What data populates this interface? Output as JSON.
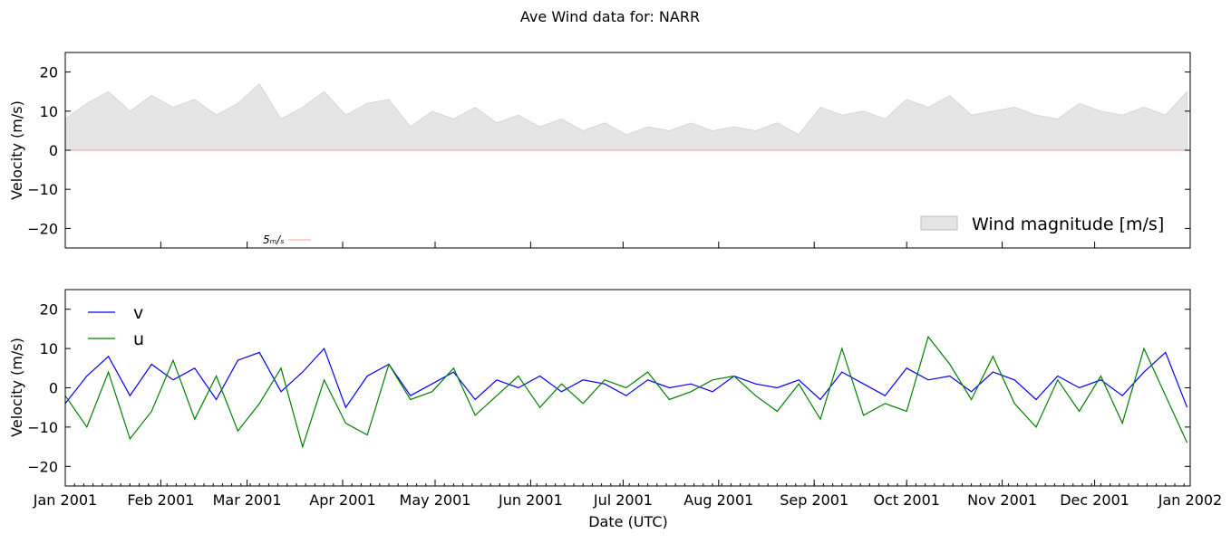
{
  "title": "Ave Wind data for:   NARR",
  "chart_data": [
    {
      "type": "area",
      "panel": "top",
      "ylabel": "Velocity (m/s)",
      "ylim": [
        -25,
        25
      ],
      "yticks": [
        20,
        10,
        0,
        -10,
        -20
      ],
      "xlim": [
        "2001-01-01",
        "2002-01-01"
      ],
      "legend": {
        "placement": "lower-right",
        "entries": [
          "Wind magnitude [m/s]"
        ]
      },
      "quiver_key": "5ₘ/ₛ",
      "series": [
        {
          "name": "Wind magnitude [m/s]",
          "color": "#e5e5e5",
          "x": [
            "2001-01-01",
            "2001-01-08",
            "2001-01-15",
            "2001-01-22",
            "2001-01-29",
            "2001-02-05",
            "2001-02-12",
            "2001-02-19",
            "2001-02-26",
            "2001-03-05",
            "2001-03-12",
            "2001-03-19",
            "2001-03-26",
            "2001-04-02",
            "2001-04-09",
            "2001-04-16",
            "2001-04-23",
            "2001-04-30",
            "2001-05-07",
            "2001-05-14",
            "2001-05-21",
            "2001-05-28",
            "2001-06-04",
            "2001-06-11",
            "2001-06-18",
            "2001-06-25",
            "2001-07-02",
            "2001-07-09",
            "2001-07-16",
            "2001-07-23",
            "2001-07-30",
            "2001-08-06",
            "2001-08-13",
            "2001-08-20",
            "2001-08-27",
            "2001-09-03",
            "2001-09-10",
            "2001-09-17",
            "2001-09-24",
            "2001-10-01",
            "2001-10-08",
            "2001-10-15",
            "2001-10-22",
            "2001-10-29",
            "2001-11-05",
            "2001-11-12",
            "2001-11-19",
            "2001-11-26",
            "2001-12-03",
            "2001-12-10",
            "2001-12-17",
            "2001-12-24",
            "2001-12-31"
          ],
          "values": [
            8,
            12,
            15,
            10,
            14,
            11,
            13,
            9,
            12,
            17,
            8,
            11,
            15,
            9,
            12,
            13,
            6,
            10,
            8,
            11,
            7,
            9,
            6,
            8,
            5,
            7,
            4,
            6,
            5,
            7,
            5,
            6,
            5,
            7,
            4,
            11,
            9,
            10,
            8,
            13,
            11,
            14,
            9,
            10,
            11,
            9,
            8,
            12,
            10,
            9,
            11,
            9,
            15
          ]
        }
      ]
    },
    {
      "type": "line",
      "panel": "bottom",
      "ylabel": "Velocity (m/s)",
      "xlabel": "Date (UTC)",
      "ylim": [
        -25,
        25
      ],
      "yticks": [
        20,
        10,
        0,
        -10,
        -20
      ],
      "xlim": [
        "2001-01-01",
        "2002-01-01"
      ],
      "xticklabels": [
        "Jan 2001",
        "Feb 2001",
        "Mar 2001",
        "Apr 2001",
        "May 2001",
        "Jun 2001",
        "Jul 2001",
        "Aug 2001",
        "Sep 2001",
        "Oct 2001",
        "Nov 2001",
        "Dec 2001",
        "Jan 2002"
      ],
      "legend": {
        "placement": "upper-left",
        "entries": [
          "v",
          "u"
        ]
      },
      "series": [
        {
          "name": "v",
          "color": "#0000ff",
          "x": [
            "2001-01-01",
            "2001-01-08",
            "2001-01-15",
            "2001-01-22",
            "2001-01-29",
            "2001-02-05",
            "2001-02-12",
            "2001-02-19",
            "2001-02-26",
            "2001-03-05",
            "2001-03-12",
            "2001-03-19",
            "2001-03-26",
            "2001-04-02",
            "2001-04-09",
            "2001-04-16",
            "2001-04-23",
            "2001-04-30",
            "2001-05-07",
            "2001-05-14",
            "2001-05-21",
            "2001-05-28",
            "2001-06-04",
            "2001-06-11",
            "2001-06-18",
            "2001-06-25",
            "2001-07-02",
            "2001-07-09",
            "2001-07-16",
            "2001-07-23",
            "2001-07-30",
            "2001-08-06",
            "2001-08-13",
            "2001-08-20",
            "2001-08-27",
            "2001-09-03",
            "2001-09-10",
            "2001-09-17",
            "2001-09-24",
            "2001-10-01",
            "2001-10-08",
            "2001-10-15",
            "2001-10-22",
            "2001-10-29",
            "2001-11-05",
            "2001-11-12",
            "2001-11-19",
            "2001-11-26",
            "2001-12-03",
            "2001-12-10",
            "2001-12-17",
            "2001-12-24",
            "2001-12-31"
          ],
          "values": [
            -4,
            3,
            8,
            -2,
            6,
            2,
            5,
            -3,
            7,
            9,
            -1,
            4,
            10,
            -5,
            3,
            6,
            -2,
            1,
            4,
            -3,
            2,
            0,
            3,
            -1,
            2,
            1,
            -2,
            2,
            0,
            1,
            -1,
            3,
            1,
            0,
            2,
            -3,
            4,
            1,
            -2,
            5,
            2,
            3,
            -1,
            4,
            2,
            -3,
            3,
            0,
            2,
            -2,
            4,
            9,
            -5
          ]
        },
        {
          "name": "u",
          "color": "#008000",
          "x": [
            "2001-01-01",
            "2001-01-08",
            "2001-01-15",
            "2001-01-22",
            "2001-01-29",
            "2001-02-05",
            "2001-02-12",
            "2001-02-19",
            "2001-02-26",
            "2001-03-05",
            "2001-03-12",
            "2001-03-19",
            "2001-03-26",
            "2001-04-02",
            "2001-04-09",
            "2001-04-16",
            "2001-04-23",
            "2001-04-30",
            "2001-05-07",
            "2001-05-14",
            "2001-05-21",
            "2001-05-28",
            "2001-06-04",
            "2001-06-11",
            "2001-06-18",
            "2001-06-25",
            "2001-07-02",
            "2001-07-09",
            "2001-07-16",
            "2001-07-23",
            "2001-07-30",
            "2001-08-06",
            "2001-08-13",
            "2001-08-20",
            "2001-08-27",
            "2001-09-03",
            "2001-09-10",
            "2001-09-17",
            "2001-09-24",
            "2001-10-01",
            "2001-10-08",
            "2001-10-15",
            "2001-10-22",
            "2001-10-29",
            "2001-11-05",
            "2001-11-12",
            "2001-11-19",
            "2001-11-26",
            "2001-12-03",
            "2001-12-10",
            "2001-12-17",
            "2001-12-24",
            "2001-12-31"
          ],
          "values": [
            -2,
            -10,
            4,
            -13,
            -6,
            7,
            -8,
            3,
            -11,
            -4,
            5,
            -15,
            2,
            -9,
            -12,
            6,
            -3,
            -1,
            5,
            -7,
            -2,
            3,
            -5,
            1,
            -4,
            2,
            0,
            4,
            -3,
            -1,
            2,
            3,
            -2,
            -6,
            1,
            -8,
            10,
            -7,
            -4,
            -6,
            13,
            6,
            -3,
            8,
            -4,
            -10,
            2,
            -6,
            3,
            -9,
            10,
            -2,
            -14
          ]
        }
      ]
    }
  ]
}
